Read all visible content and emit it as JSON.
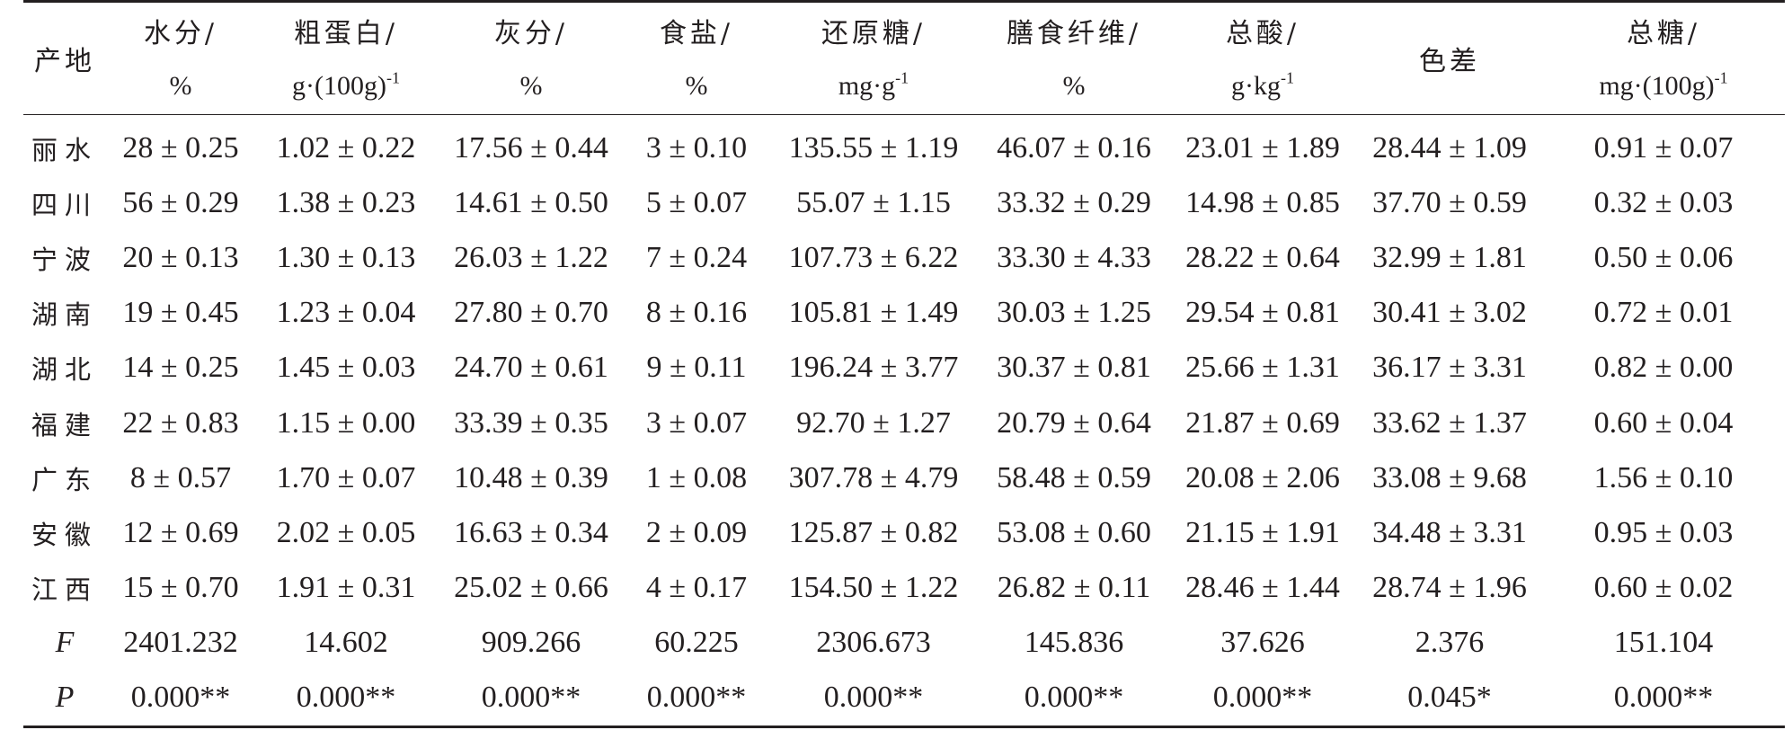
{
  "table": {
    "corner_label": "产地",
    "columns": [
      {
        "name": "水分/",
        "unit": "%"
      },
      {
        "name": "粗蛋白/",
        "unit": "g·(100g)",
        "sup": "-1"
      },
      {
        "name": "灰分/",
        "unit": "%"
      },
      {
        "name": "食盐/",
        "unit": "%"
      },
      {
        "name": "还原糖/",
        "unit": "mg·g",
        "sup": "-1"
      },
      {
        "name": "膳食纤维/",
        "unit": "%"
      },
      {
        "name": "总酸/",
        "unit": "g·kg",
        "sup": "-1"
      },
      {
        "name": "色差",
        "unit": ""
      },
      {
        "name": "总糖/",
        "unit": "mg·(100g)",
        "sup": "-1"
      }
    ],
    "rows": [
      {
        "label": "丽水",
        "values": [
          "28 ± 0.25",
          "1.02 ± 0.22",
          "17.56 ± 0.44",
          "3 ± 0.10",
          "135.55 ± 1.19",
          "46.07 ± 0.16",
          "23.01 ± 1.89",
          "28.44 ± 1.09",
          "0.91 ± 0.07"
        ]
      },
      {
        "label": "四川",
        "values": [
          "56 ± 0.29",
          "1.38 ± 0.23",
          "14.61 ± 0.50",
          "5 ± 0.07",
          "55.07 ± 1.15",
          "33.32 ± 0.29",
          "14.98 ± 0.85",
          "37.70 ± 0.59",
          "0.32 ± 0.03"
        ]
      },
      {
        "label": "宁波",
        "values": [
          "20 ± 0.13",
          "1.30 ± 0.13",
          "26.03 ± 1.22",
          "7 ± 0.24",
          "107.73 ± 6.22",
          "33.30 ± 4.33",
          "28.22 ± 0.64",
          "32.99 ± 1.81",
          "0.50 ± 0.06"
        ]
      },
      {
        "label": "湖南",
        "values": [
          "19 ± 0.45",
          "1.23 ± 0.04",
          "27.80 ± 0.70",
          "8 ± 0.16",
          "105.81 ± 1.49",
          "30.03 ± 1.25",
          "29.54 ± 0.81",
          "30.41 ± 3.02",
          "0.72 ± 0.01"
        ]
      },
      {
        "label": "湖北",
        "values": [
          "14 ± 0.25",
          "1.45 ± 0.03",
          "24.70 ± 0.61",
          "9 ± 0.11",
          "196.24 ± 3.77",
          "30.37 ± 0.81",
          "25.66 ± 1.31",
          "36.17 ± 3.31",
          "0.82 ± 0.00"
        ]
      },
      {
        "label": "福建",
        "values": [
          "22 ± 0.83",
          "1.15 ± 0.00",
          "33.39 ± 0.35",
          "3 ± 0.07",
          "92.70 ± 1.27",
          "20.79 ± 0.64",
          "21.87 ± 0.69",
          "33.62 ± 1.37",
          "0.60 ± 0.04"
        ]
      },
      {
        "label": "广东",
        "values": [
          "8 ± 0.57",
          "1.70 ± 0.07",
          "10.48 ± 0.39",
          "1 ± 0.08",
          "307.78 ± 4.79",
          "58.48 ± 0.59",
          "20.08 ± 2.06",
          "33.08 ± 9.68",
          "1.56 ± 0.10"
        ]
      },
      {
        "label": "安徽",
        "values": [
          "12 ± 0.69",
          "2.02 ± 0.05",
          "16.63 ± 0.34",
          "2 ± 0.09",
          "125.87 ± 0.82",
          "53.08 ± 0.60",
          "21.15 ± 1.91",
          "34.48 ± 3.31",
          "0.95 ± 0.03"
        ]
      },
      {
        "label": "江西",
        "values": [
          "15 ± 0.70",
          "1.91 ± 0.31",
          "25.02 ± 0.66",
          "4 ± 0.17",
          "154.50 ± 1.22",
          "26.82 ± 0.11",
          "28.46 ± 1.44",
          "28.74 ± 1.96",
          "0.60 ± 0.02"
        ]
      }
    ],
    "stats": [
      {
        "label": "F",
        "values": [
          "2401.232",
          "14.602",
          "909.266",
          "60.225",
          "2306.673",
          "145.836",
          "37.626",
          "2.376",
          "151.104"
        ]
      },
      {
        "label": "P",
        "values": [
          "0.000**",
          "0.000**",
          "0.000**",
          "0.000**",
          "0.000**",
          "0.000**",
          "0.000**",
          "0.045*",
          "0.000**"
        ]
      }
    ]
  }
}
